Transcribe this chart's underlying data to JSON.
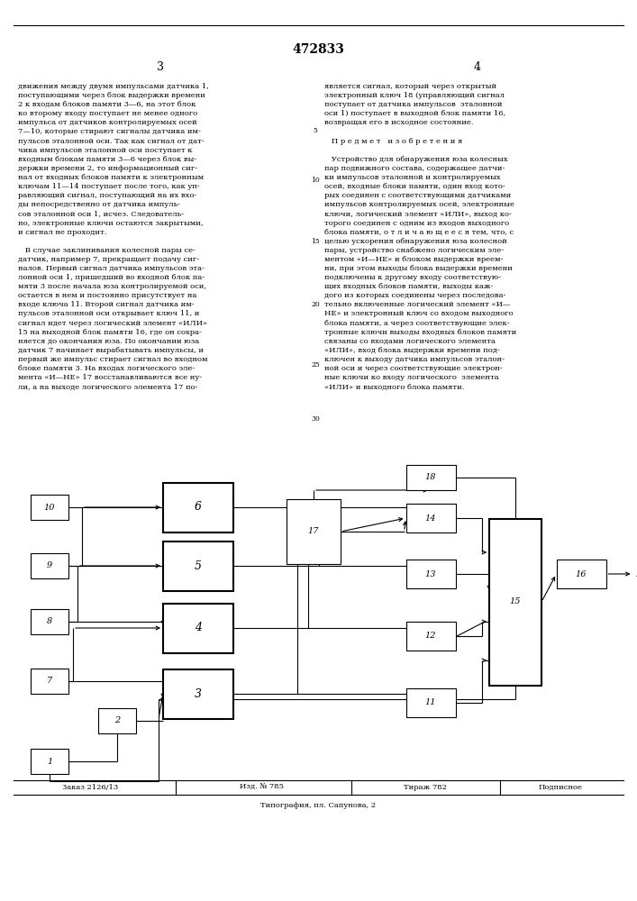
{
  "title": "472833",
  "bottom_text": [
    "Заказ 2126/13",
    "Изд. № 785",
    "Тираж 782",
    "Подписное"
  ],
  "footer_text": "Типография, пл. Сапунова, 2",
  "left_text": "движения между двумя импульсами датчика 1,\nпоступающими через блок выдержки времени\n2 к входам блоков памяти 3—6, на этот блок\nко второму входу поступает не менее одного\nимпульса от датчиков контролируемых осей\n7—10, которые стирают сигналы датчика им-\nпульсов эталонной оси. Так как сигнал от дат-\nчика импульсов эталонной оси поступает к\nвходным блокам памяти 3—6 через блок вы-\nдержки времени 2, то информационный сиг-\nнал от входных блоков памяти к электронным\nключам 11—14 поступает после того, как уп-\nравляющий сигнал, поступающий на их вхо-\nды непосредственно от датчика импуль-\nсов эталонной оси 1, исчез. Следователь-\nно, электронные ключи остаются закрытыми,\nи сигнал не проходит.\n\n   В случае заклинивания колесной пары се-\nдатчик, например 7, прекращает подачу сиг-\nналов. Первый сигнал датчика импульсов эта-\nлонной оси 1, пришедший во входной блок па-\nмяти 3 после начала юза контролируемой оси,\nостается в нем и постоянно присутствует на\nвходе ключа 11. Второй сигнал датчика им-\nпульсов эталонной оси открывает ключ 11, и\nсигнал идет через логический элемент «ИЛИ»\n15 на выходной блок памяти 16, где он сохра-\nняется до окончания юза. По окончании юза\nдатчик 7 начинает вырабатывать импульсы, и\nпервый же импульс стирает сигнал во входном\nблоке памяти 3. На входах логического эле-\nмента «И—НЕ» 17 восстанавливаются все ну-\nли, а на выходе логического элемента 17 по-",
  "right_text": "является сигнал, который через открытый\nэлектронный ключ 18 (управляющий сигнал\nпоступает от датчика импульсов  эталонной\nоси 1) поступает в выходной блок памяти 16,\nвозвращая его в исходное состояние.\n\n   П р е д м е т   и з о б р е т е н и я\n\n   Устройство для обнаружения юза колесных\nпар подвижного состава, содержащее датчи-\nки импульсов эталонной и контролируемых\nосей, входные блоки памяти, один вход кото-\nрых соединен с соответствующими датчиками\nимпульсов контролируемых осей, электронные\nключи, логический элемент «ИЛИ», выход ко-\nторого соединен с одним из входов выходного\nблока памяти, о т л и ч а ю щ е е с я тем, что, с\nцелью ускорения обнаружения юза колесной\nпары, устройство снабжено логическим эле-\nментом «И—НЕ» и блоком выдержки вреем-\nни, при этом выходы блока выдержки времени\nподключены к другому входу соответствую-\nщих входных блоков памяти, выходы каж-\nдого из которых соединены через последова-\nтельно включенные логический элемент «И—\nНЕ» и электронный ключ со входом выходного\nблока памяти, а через соответствующие элек-\nтронные ключи выходы входных блоков памяти\nсвязаны со входами логического элемента\n«ИЛИ», вход блока выдержки времени под-\nключен к выходу датчика импульсов эталон-\nной оси и через соответствующие электрон-\nные ключи ко входу логического  элемента\n«ИЛИ» и выходного блока памяти."
}
